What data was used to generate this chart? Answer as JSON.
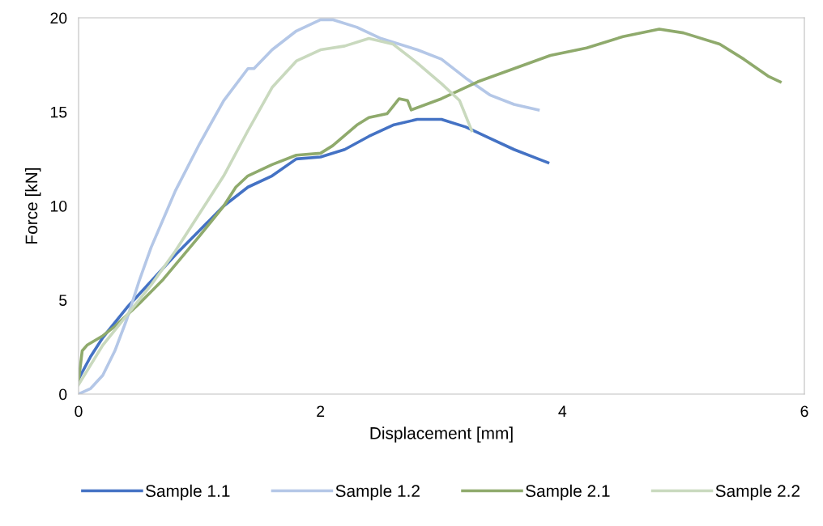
{
  "chart_data": {
    "type": "line",
    "xlabel": "Displacement [mm]",
    "ylabel": "Force [kN]",
    "xlim": [
      0,
      6
    ],
    "xticks": [
      0,
      2,
      4,
      6
    ],
    "ylim": [
      0,
      20
    ],
    "yticks": [
      0,
      5,
      10,
      15,
      20
    ],
    "grid": false,
    "legend": "bottom",
    "marker": "none",
    "line_style": "solid",
    "series": [
      {
        "name": "Sample 1.1",
        "color": "#4472c4",
        "x": [
          0,
          0.1,
          0.2,
          0.4,
          0.6,
          0.8,
          1.0,
          1.2,
          1.4,
          1.6,
          1.8,
          2.0,
          2.2,
          2.4,
          2.6,
          2.8,
          3.0,
          3.2,
          3.4,
          3.6,
          3.8,
          3.88
        ],
        "values": [
          0.8,
          2,
          3,
          4.6,
          6,
          7.4,
          8.7,
          10,
          11,
          11.6,
          12.5,
          12.6,
          13,
          13.7,
          14.3,
          14.6,
          14.6,
          14.2,
          13.6,
          13,
          12.5,
          12.3
        ]
      },
      {
        "name": "Sample 1.2",
        "color": "#b4c7e7",
        "x": [
          0,
          0.1,
          0.2,
          0.3,
          0.4,
          0.5,
          0.6,
          0.8,
          1.0,
          1.2,
          1.4,
          1.45,
          1.6,
          1.8,
          2.0,
          2.1,
          2.3,
          2.5,
          2.8,
          3.0,
          3.2,
          3.4,
          3.6,
          3.8
        ],
        "values": [
          0,
          0.3,
          1,
          2.3,
          4,
          6,
          7.8,
          10.8,
          13.3,
          15.6,
          17.3,
          17.3,
          18.3,
          19.3,
          19.9,
          19.9,
          19.5,
          18.9,
          18.3,
          17.8,
          16.8,
          15.9,
          15.4,
          15.1
        ]
      },
      {
        "name": "Sample 2.1",
        "color": "#8faa6c",
        "x": [
          0,
          0.03,
          0.07,
          0.2,
          0.3,
          0.5,
          0.7,
          1.0,
          1.2,
          1.3,
          1.4,
          1.6,
          1.8,
          2.0,
          2.1,
          2.3,
          2.4,
          2.55,
          2.6,
          2.65,
          2.72,
          2.75,
          3.0,
          3.3,
          3.6,
          3.9,
          4.2,
          4.5,
          4.8,
          5.0,
          5.3,
          5.5,
          5.7,
          5.8
        ],
        "values": [
          0.7,
          2.3,
          2.6,
          3.1,
          3.6,
          4.8,
          6.1,
          8.4,
          10,
          11,
          11.6,
          12.2,
          12.7,
          12.8,
          13.2,
          14.3,
          14.7,
          14.9,
          15.3,
          15.7,
          15.6,
          15.1,
          15.7,
          16.6,
          17.3,
          18,
          18.4,
          19,
          19.4,
          19.2,
          18.6,
          17.8,
          16.9,
          16.6
        ]
      },
      {
        "name": "Sample 2.2",
        "color": "#c9d9be",
        "x": [
          0,
          0.2,
          0.4,
          0.6,
          0.8,
          1.0,
          1.2,
          1.4,
          1.6,
          1.8,
          2.0,
          2.2,
          2.4,
          2.6,
          2.8,
          3.0,
          3.15,
          3.25
        ],
        "values": [
          0.5,
          2.6,
          4.2,
          5.8,
          7.6,
          9.6,
          11.6,
          14,
          16.3,
          17.7,
          18.3,
          18.5,
          18.9,
          18.6,
          17.6,
          16.5,
          15.6,
          14
        ]
      }
    ]
  }
}
